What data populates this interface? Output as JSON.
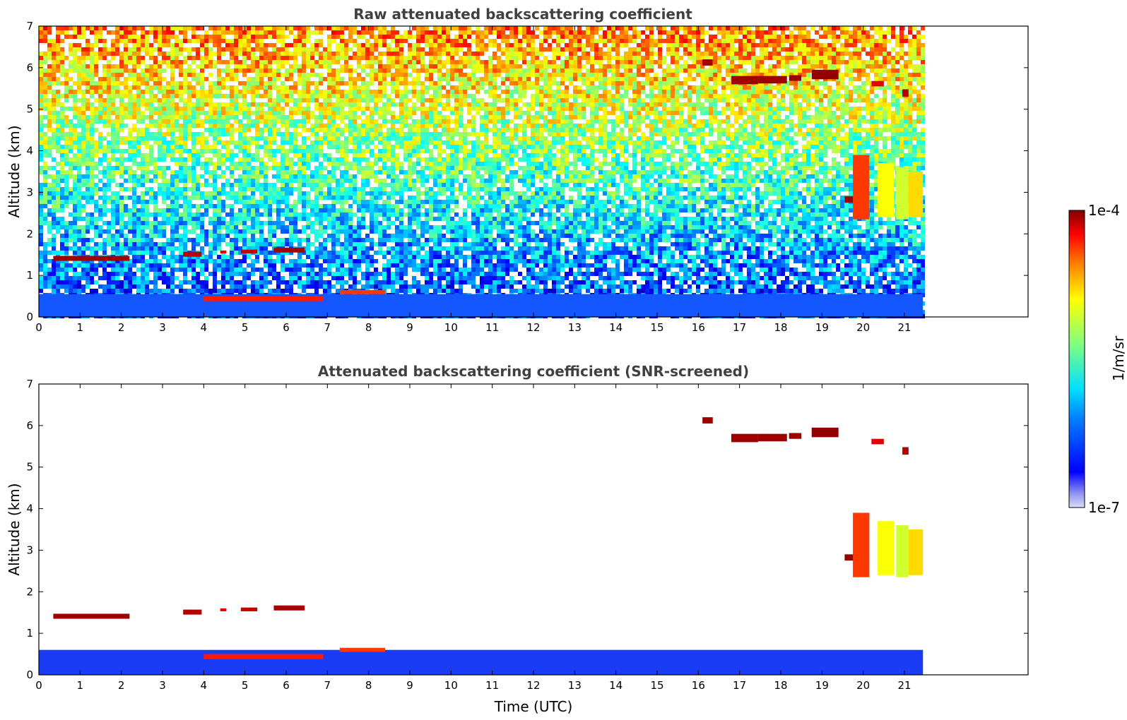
{
  "chart_data": [
    {
      "type": "heatmap",
      "title": "Raw attenuated backscattering coefficient",
      "xlabel": "",
      "ylabel": "Altitude (km)",
      "xlim": [
        0,
        24
      ],
      "ylim": [
        0,
        7
      ],
      "x_ticks": [
        0,
        1,
        2,
        3,
        4,
        5,
        6,
        7,
        8,
        9,
        10,
        11,
        12,
        13,
        14,
        15,
        16,
        17,
        18,
        19,
        20,
        21
      ],
      "y_ticks": [
        0,
        1,
        2,
        3,
        4,
        5,
        6,
        7
      ],
      "data_extent_x": [
        0,
        21.45
      ],
      "description_of_fields": "noisy background increasing with altitude; boundary layer 0-0.6 km",
      "layers": [
        {
          "kind": "boundary_layer",
          "x": [
            0,
            21.45
          ],
          "y": [
            0,
            0.55
          ],
          "level": 0.22
        },
        {
          "kind": "cloud",
          "x": [
            0.35,
            2.2
          ],
          "y": [
            1.35,
            1.47
          ],
          "level": 0.97
        },
        {
          "kind": "cloud",
          "x": [
            3.5,
            3.95
          ],
          "y": [
            1.45,
            1.57
          ],
          "level": 0.95
        },
        {
          "kind": "cloud",
          "x": [
            4.4,
            4.55
          ],
          "y": [
            1.53,
            1.6
          ],
          "level": 0.9
        },
        {
          "kind": "cloud",
          "x": [
            4.9,
            5.3
          ],
          "y": [
            1.53,
            1.62
          ],
          "level": 0.93
        },
        {
          "kind": "cloud",
          "x": [
            5.7,
            6.45
          ],
          "y": [
            1.55,
            1.67
          ],
          "level": 0.96
        },
        {
          "kind": "cloud",
          "x": [
            4.0,
            6.9
          ],
          "y": [
            0.38,
            0.5
          ],
          "level": 0.85
        },
        {
          "kind": "cloud",
          "x": [
            7.3,
            8.4
          ],
          "y": [
            0.55,
            0.65
          ],
          "level": 0.82
        },
        {
          "kind": "cloud",
          "x": [
            16.1,
            16.35
          ],
          "y": [
            6.05,
            6.2
          ],
          "level": 0.97
        },
        {
          "kind": "cloud",
          "x": [
            16.8,
            17.45
          ],
          "y": [
            5.6,
            5.8
          ],
          "level": 0.97
        },
        {
          "kind": "cloud",
          "x": [
            17.45,
            18.15
          ],
          "y": [
            5.62,
            5.8
          ],
          "level": 0.97
        },
        {
          "kind": "cloud",
          "x": [
            18.2,
            18.5
          ],
          "y": [
            5.68,
            5.82
          ],
          "level": 0.97
        },
        {
          "kind": "cloud",
          "x": [
            18.75,
            19.4
          ],
          "y": [
            5.72,
            5.95
          ],
          "level": 0.98
        },
        {
          "kind": "cloud",
          "x": [
            20.2,
            20.5
          ],
          "y": [
            5.55,
            5.68
          ],
          "level": 0.9
        },
        {
          "kind": "cloud",
          "x": [
            20.95,
            21.1
          ],
          "y": [
            5.3,
            5.48
          ],
          "level": 0.95
        },
        {
          "kind": "cloud",
          "x": [
            19.55,
            19.8
          ],
          "y": [
            2.75,
            2.9
          ],
          "level": 0.98
        },
        {
          "kind": "fallstreak",
          "x": [
            19.75,
            20.15
          ],
          "y": [
            2.35,
            3.9
          ],
          "level": 0.82
        },
        {
          "kind": "fallstreak",
          "x": [
            20.35,
            20.75
          ],
          "y": [
            2.4,
            3.7
          ],
          "level": 0.62
        },
        {
          "kind": "fallstreak",
          "x": [
            20.8,
            21.1
          ],
          "y": [
            2.35,
            3.6
          ],
          "level": 0.58
        },
        {
          "kind": "fallstreak",
          "x": [
            21.1,
            21.45
          ],
          "y": [
            2.4,
            3.5
          ],
          "level": 0.66
        }
      ]
    },
    {
      "type": "heatmap",
      "title": "Attenuated backscattering coefficient (SNR-screened)",
      "xlabel": "Time (UTC)",
      "ylabel": "Altitude (km)",
      "xlim": [
        0,
        24
      ],
      "ylim": [
        0,
        7
      ],
      "x_ticks": [
        0,
        1,
        2,
        3,
        4,
        5,
        6,
        7,
        8,
        9,
        10,
        11,
        12,
        13,
        14,
        15,
        16,
        17,
        18,
        19,
        20,
        21
      ],
      "y_ticks": [
        0,
        1,
        2,
        3,
        4,
        5,
        6,
        7
      ],
      "data_extent_x": [
        0,
        21.45
      ],
      "layers": [
        {
          "kind": "boundary_layer",
          "x": [
            0,
            21.45
          ],
          "y": [
            0,
            0.6
          ],
          "level": 0.22
        },
        {
          "kind": "cloud",
          "x": [
            0.35,
            2.2
          ],
          "y": [
            1.35,
            1.47
          ],
          "level": 0.97
        },
        {
          "kind": "cloud",
          "x": [
            3.5,
            3.95
          ],
          "y": [
            1.45,
            1.57
          ],
          "level": 0.95
        },
        {
          "kind": "cloud",
          "x": [
            4.4,
            4.55
          ],
          "y": [
            1.53,
            1.6
          ],
          "level": 0.9
        },
        {
          "kind": "cloud",
          "x": [
            4.9,
            5.3
          ],
          "y": [
            1.53,
            1.62
          ],
          "level": 0.93
        },
        {
          "kind": "cloud",
          "x": [
            5.7,
            6.45
          ],
          "y": [
            1.55,
            1.67
          ],
          "level": 0.96
        },
        {
          "kind": "cloud",
          "x": [
            4.0,
            6.9
          ],
          "y": [
            0.38,
            0.5
          ],
          "level": 0.85
        },
        {
          "kind": "cloud",
          "x": [
            7.3,
            8.4
          ],
          "y": [
            0.55,
            0.65
          ],
          "level": 0.82
        },
        {
          "kind": "cloud",
          "x": [
            16.1,
            16.35
          ],
          "y": [
            6.05,
            6.2
          ],
          "level": 0.97
        },
        {
          "kind": "cloud",
          "x": [
            16.8,
            17.45
          ],
          "y": [
            5.6,
            5.8
          ],
          "level": 0.97
        },
        {
          "kind": "cloud",
          "x": [
            17.45,
            18.15
          ],
          "y": [
            5.62,
            5.8
          ],
          "level": 0.97
        },
        {
          "kind": "cloud",
          "x": [
            18.2,
            18.5
          ],
          "y": [
            5.68,
            5.82
          ],
          "level": 0.97
        },
        {
          "kind": "cloud",
          "x": [
            18.75,
            19.4
          ],
          "y": [
            5.72,
            5.95
          ],
          "level": 0.98
        },
        {
          "kind": "cloud",
          "x": [
            20.2,
            20.5
          ],
          "y": [
            5.55,
            5.68
          ],
          "level": 0.9
        },
        {
          "kind": "cloud",
          "x": [
            20.95,
            21.1
          ],
          "y": [
            5.3,
            5.48
          ],
          "level": 0.95
        },
        {
          "kind": "cloud",
          "x": [
            19.55,
            19.8
          ],
          "y": [
            2.75,
            2.9
          ],
          "level": 0.98
        },
        {
          "kind": "fallstreak",
          "x": [
            19.75,
            20.15
          ],
          "y": [
            2.35,
            3.9
          ],
          "level": 0.82
        },
        {
          "kind": "fallstreak",
          "x": [
            20.35,
            20.75
          ],
          "y": [
            2.4,
            3.7
          ],
          "level": 0.62
        },
        {
          "kind": "fallstreak",
          "x": [
            20.8,
            21.1
          ],
          "y": [
            2.35,
            3.6
          ],
          "level": 0.58
        },
        {
          "kind": "fallstreak",
          "x": [
            21.1,
            21.45
          ],
          "y": [
            2.4,
            3.5
          ],
          "level": 0.66
        }
      ]
    }
  ],
  "colorbar": {
    "label": "1/m/sr",
    "min_label": "1e-7",
    "max_label": "1e-4",
    "colormap": "jet",
    "scale": "log"
  }
}
